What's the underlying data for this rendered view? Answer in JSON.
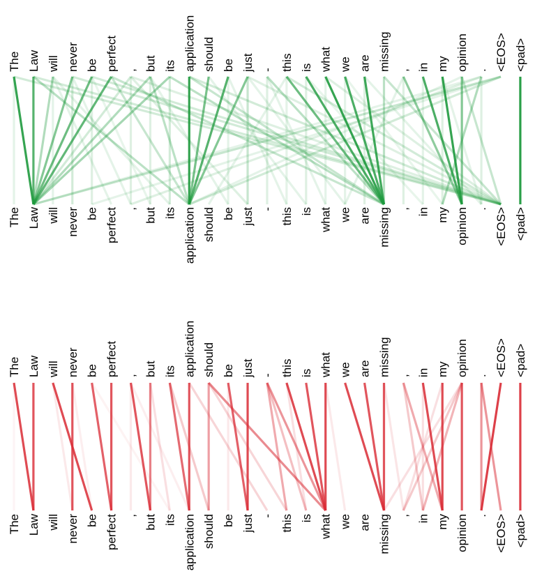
{
  "tokens": [
    "The",
    "Law",
    "will",
    "never",
    "be",
    "perfect",
    ",",
    "but",
    "its",
    "application",
    "should",
    "be",
    "just",
    "-",
    "this",
    "is",
    "what",
    "we",
    "are",
    "missing",
    ",",
    "in",
    "my",
    "opinion",
    ".",
    "<EOS>",
    "<pad>"
  ],
  "panels": [
    {
      "id": "top",
      "color": "#1f9a3e",
      "edges": [
        [
          0,
          1,
          0.9
        ],
        [
          1,
          1,
          0.75
        ],
        [
          2,
          1,
          0.35
        ],
        [
          3,
          1,
          0.55
        ],
        [
          4,
          1,
          0.65
        ],
        [
          5,
          1,
          0.7
        ],
        [
          6,
          1,
          0.2
        ],
        [
          7,
          1,
          0.35
        ],
        [
          8,
          1,
          0.4
        ],
        [
          9,
          9,
          0.9
        ],
        [
          10,
          9,
          0.6
        ],
        [
          11,
          9,
          0.75
        ],
        [
          12,
          9,
          0.55
        ],
        [
          7,
          9,
          0.3
        ],
        [
          1,
          9,
          0.3
        ],
        [
          5,
          9,
          0.25
        ],
        [
          14,
          19,
          0.65
        ],
        [
          15,
          19,
          0.8
        ],
        [
          16,
          19,
          0.9
        ],
        [
          17,
          19,
          0.8
        ],
        [
          18,
          19,
          0.85
        ],
        [
          19,
          19,
          0.3
        ],
        [
          13,
          19,
          0.3
        ],
        [
          8,
          19,
          0.3
        ],
        [
          5,
          19,
          0.25
        ],
        [
          9,
          19,
          0.25
        ],
        [
          21,
          23,
          0.8
        ],
        [
          22,
          23,
          0.9
        ],
        [
          23,
          23,
          0.55
        ],
        [
          20,
          23,
          0.5
        ],
        [
          24,
          22,
          0.35
        ],
        [
          26,
          26,
          0.95
        ],
        [
          0,
          25,
          0.2
        ],
        [
          1,
          25,
          0.2
        ],
        [
          3,
          25,
          0.2
        ],
        [
          4,
          25,
          0.2
        ],
        [
          6,
          25,
          0.15
        ],
        [
          9,
          25,
          0.2
        ],
        [
          12,
          25,
          0.15
        ],
        [
          14,
          25,
          0.2
        ],
        [
          16,
          25,
          0.15
        ],
        [
          19,
          25,
          0.25
        ],
        [
          23,
          25,
          0.25
        ],
        [
          25,
          1,
          0.25
        ],
        [
          25,
          9,
          0.2
        ],
        [
          25,
          4,
          0.12
        ],
        [
          24,
          6,
          0.15
        ],
        [
          24,
          1,
          0.12
        ],
        [
          23,
          9,
          0.12
        ],
        [
          0,
          0,
          0.12
        ],
        [
          2,
          2,
          0.12
        ],
        [
          3,
          3,
          0.2
        ],
        [
          4,
          4,
          0.15
        ],
        [
          6,
          6,
          0.15
        ],
        [
          7,
          7,
          0.15
        ],
        [
          8,
          8,
          0.2
        ],
        [
          11,
          11,
          0.12
        ],
        [
          12,
          12,
          0.25
        ],
        [
          13,
          13,
          0.15
        ],
        [
          14,
          14,
          0.12
        ],
        [
          15,
          15,
          0.15
        ],
        [
          16,
          16,
          0.12
        ],
        [
          17,
          17,
          0.12
        ],
        [
          18,
          18,
          0.15
        ],
        [
          20,
          20,
          0.15
        ],
        [
          21,
          21,
          0.12
        ],
        [
          22,
          22,
          0.15
        ],
        [
          24,
          24,
          0.15
        ],
        [
          2,
          5,
          0.12
        ],
        [
          3,
          6,
          0.12
        ],
        [
          6,
          12,
          0.15
        ],
        [
          13,
          16,
          0.12
        ],
        [
          10,
          15,
          0.12
        ],
        [
          11,
          14,
          0.12
        ],
        [
          18,
          24,
          0.12
        ],
        [
          14,
          10,
          0.12
        ],
        [
          20,
          17,
          0.12
        ],
        [
          15,
          21,
          0.1
        ],
        [
          17,
          22,
          0.1
        ],
        [
          22,
          24,
          0.12
        ],
        [
          2,
          8,
          0.12
        ],
        [
          4,
          7,
          0.1
        ],
        [
          7,
          11,
          0.12
        ],
        [
          12,
          17,
          0.12
        ]
      ]
    },
    {
      "id": "bottom",
      "color": "#d92b35",
      "edges": [
        [
          0,
          1,
          0.85
        ],
        [
          1,
          1,
          0.8
        ],
        [
          2,
          4,
          0.85
        ],
        [
          3,
          3,
          0.8
        ],
        [
          4,
          5,
          0.75
        ],
        [
          5,
          5,
          0.8
        ],
        [
          6,
          7,
          0.8
        ],
        [
          7,
          7,
          0.6
        ],
        [
          8,
          9,
          0.7
        ],
        [
          9,
          9,
          0.8
        ],
        [
          10,
          10,
          0.45
        ],
        [
          10,
          16,
          0.55
        ],
        [
          11,
          12,
          0.75
        ],
        [
          12,
          12,
          0.85
        ],
        [
          13,
          16,
          0.5
        ],
        [
          14,
          16,
          0.85
        ],
        [
          15,
          16,
          0.8
        ],
        [
          16,
          16,
          0.85
        ],
        [
          13,
          14,
          0.4
        ],
        [
          13,
          15,
          0.3
        ],
        [
          8,
          10,
          0.25
        ],
        [
          9,
          13,
          0.2
        ],
        [
          17,
          19,
          0.85
        ],
        [
          18,
          19,
          0.8
        ],
        [
          19,
          19,
          0.8
        ],
        [
          20,
          22,
          0.4
        ],
        [
          21,
          22,
          0.85
        ],
        [
          22,
          22,
          0.85
        ],
        [
          23,
          23,
          0.8
        ],
        [
          23,
          21,
          0.35
        ],
        [
          23,
          20,
          0.25
        ],
        [
          23,
          19,
          0.15
        ],
        [
          20,
          21,
          0.25
        ],
        [
          24,
          24,
          0.5
        ],
        [
          24,
          25,
          0.5
        ],
        [
          25,
          24,
          0.9
        ],
        [
          26,
          26,
          0.9
        ],
        [
          0,
          0,
          0.05
        ],
        [
          2,
          3,
          0.1
        ],
        [
          3,
          4,
          0.08
        ],
        [
          6,
          6,
          0.1
        ],
        [
          7,
          8,
          0.15
        ],
        [
          10,
          14,
          0.2
        ],
        [
          11,
          11,
          0.1
        ],
        [
          14,
          15,
          0.15
        ],
        [
          16,
          17,
          0.1
        ],
        [
          19,
          20,
          0.12
        ],
        [
          21,
          21,
          0.15
        ],
        [
          22,
          20,
          0.15
        ],
        [
          4,
          8,
          0.06
        ],
        [
          6,
          9,
          0.08
        ]
      ]
    }
  ]
}
